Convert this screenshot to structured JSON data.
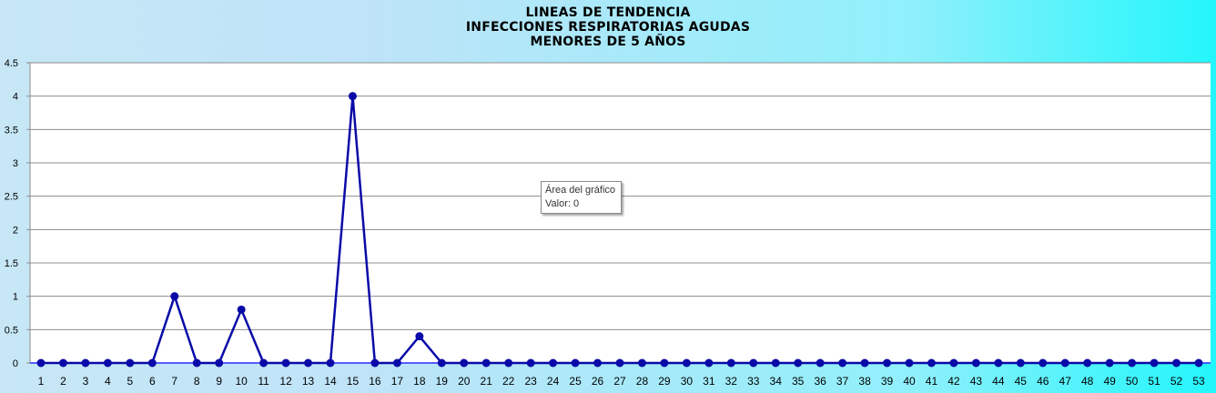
{
  "title_lines": [
    "LINEAS DE TENDENCIA",
    "INFECCIONES RESPIRATORIAS AGUDAS",
    "MENORES DE 5 AÑOS"
  ],
  "tooltip": {
    "line1": "Área del gráfico",
    "line2": "Valor: 0"
  },
  "colors": {
    "series": "#0a0aa8",
    "grid": "#8c8c8c",
    "plot_bg": "#ffffff"
  },
  "chart_data": {
    "type": "line",
    "title": "LINEAS DE TENDENCIA INFECCIONES RESPIRATORIAS AGUDAS MENORES DE 5 AÑOS",
    "xlabel": "",
    "ylabel": "",
    "ylim": [
      0,
      4.5
    ],
    "yticks": [
      "0",
      "0.5",
      "1",
      "1.5",
      "2",
      "2.5",
      "3",
      "3.5",
      "4",
      "4.5"
    ],
    "grid": true,
    "legend": "none",
    "x": [
      1,
      2,
      3,
      4,
      5,
      6,
      7,
      8,
      9,
      10,
      11,
      12,
      13,
      14,
      15,
      16,
      17,
      18,
      19,
      20,
      21,
      22,
      23,
      24,
      25,
      26,
      27,
      28,
      29,
      30,
      31,
      32,
      33,
      34,
      35,
      36,
      37,
      38,
      39,
      40,
      41,
      42,
      43,
      44,
      45,
      46,
      47,
      48,
      49,
      50,
      51,
      52,
      53
    ],
    "series": [
      {
        "values": [
          0,
          0,
          0,
          0,
          0,
          0,
          1,
          0,
          0,
          0.8,
          0,
          0,
          0,
          0,
          4,
          0,
          0,
          0.4,
          0,
          0,
          0,
          0,
          0,
          0,
          0,
          0,
          0,
          0,
          0,
          0,
          0,
          0,
          0,
          0,
          0,
          0,
          0,
          0,
          0,
          0,
          0,
          0,
          0,
          0,
          0,
          0,
          0,
          0,
          0,
          0,
          0,
          0,
          0
        ]
      }
    ]
  }
}
